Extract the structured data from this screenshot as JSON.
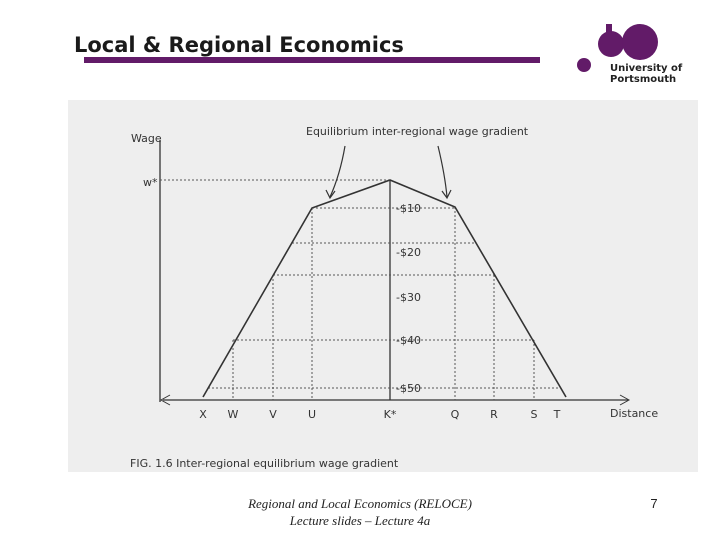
{
  "header": {
    "title": "Local & Regional Economics",
    "logo_line1": "University of",
    "logo_line2": "Portsmouth"
  },
  "figure": {
    "y_axis_label": "Wage",
    "w_star": "w*",
    "annotation": "Equilibrium inter-regional wage gradient",
    "wage_labels": [
      "-$10",
      "-$20",
      "-$30",
      "-$40",
      "-$50"
    ],
    "x_labels": [
      "X",
      "W",
      "V",
      "U",
      "K*",
      "Q",
      "R",
      "S",
      "T"
    ],
    "x_axis_label": "Distance",
    "caption": "FIG. 1.6 Inter-regional equilibrium wage gradient"
  },
  "footer": {
    "line1": "Regional and Local Economics (RELOCE)",
    "line2": "Lecture slides – Lecture 4a",
    "page_number": "7"
  }
}
